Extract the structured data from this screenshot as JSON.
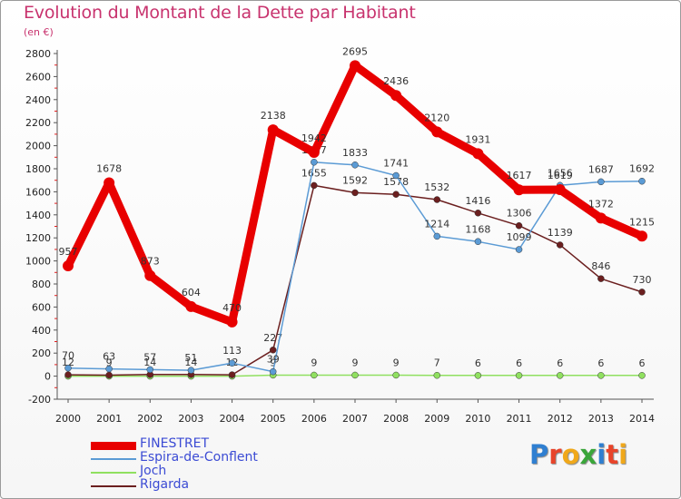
{
  "title": "Evolution du Montant de la Dette par Habitant",
  "subtitle": "(en €)",
  "logo": "Proxiti",
  "chart_data": {
    "type": "line",
    "title": "Evolution du Montant de la Dette par Habitant",
    "ylabel": "(en €)",
    "xlabel": "",
    "x": [
      "2000",
      "2001",
      "2002",
      "2003",
      "2004",
      "2005",
      "2006",
      "2007",
      "2008",
      "2009",
      "2010",
      "2011",
      "2012",
      "2013",
      "2014"
    ],
    "ylim": [
      -200,
      2800
    ],
    "yticks": [
      -200,
      0,
      200,
      400,
      600,
      800,
      1000,
      1200,
      1400,
      1600,
      1800,
      2000,
      2200,
      2400,
      2600,
      2800
    ],
    "grid": false,
    "legend_position": "bottom-left",
    "series": [
      {
        "name": "FINESTRET",
        "color": "#e80000",
        "labels": [
          "957",
          "1678",
          "873",
          "604",
          "470",
          "2138",
          "1942",
          "2695",
          "2436",
          "2120",
          "1931",
          "1617",
          "1619",
          "1372",
          "1215"
        ],
        "values": [
          957,
          1678,
          873,
          604,
          470,
          2138,
          1942,
          2695,
          2436,
          2120,
          1931,
          1617,
          1619,
          1372,
          1215
        ]
      },
      {
        "name": "Espira-de-Conflent",
        "color": "#5b9bd5",
        "labels": [
          "70",
          "63",
          "57",
          "51",
          "113",
          "39",
          "1857",
          "1833",
          "1741",
          "1214",
          "1168",
          "1099",
          "1656",
          "1687",
          "1692"
        ],
        "values": [
          70,
          63,
          57,
          51,
          113,
          39,
          1857,
          1833,
          1741,
          1214,
          1168,
          1099,
          1656,
          1687,
          1692
        ]
      },
      {
        "name": "Joch",
        "color": "#90e060",
        "labels": [
          "",
          "",
          "",
          "",
          "",
          "9",
          "9",
          "9",
          "9",
          "7",
          "6",
          "6",
          "6",
          "6",
          "6"
        ],
        "values": [
          0,
          0,
          0,
          0,
          0,
          9,
          9,
          9,
          9,
          7,
          6,
          6,
          6,
          6,
          6
        ]
      },
      {
        "name": "Rigarda",
        "color": "#6b1f1f",
        "labels": [
          "12",
          "9",
          "14",
          "14",
          "12",
          "227",
          "1655",
          "1592",
          "1578",
          "1532",
          "1416",
          "1306",
          "1139",
          "846",
          "730"
        ],
        "values": [
          12,
          9,
          14,
          14,
          12,
          227,
          1655,
          1592,
          1578,
          1532,
          1416,
          1306,
          1139,
          846,
          730
        ]
      }
    ]
  }
}
